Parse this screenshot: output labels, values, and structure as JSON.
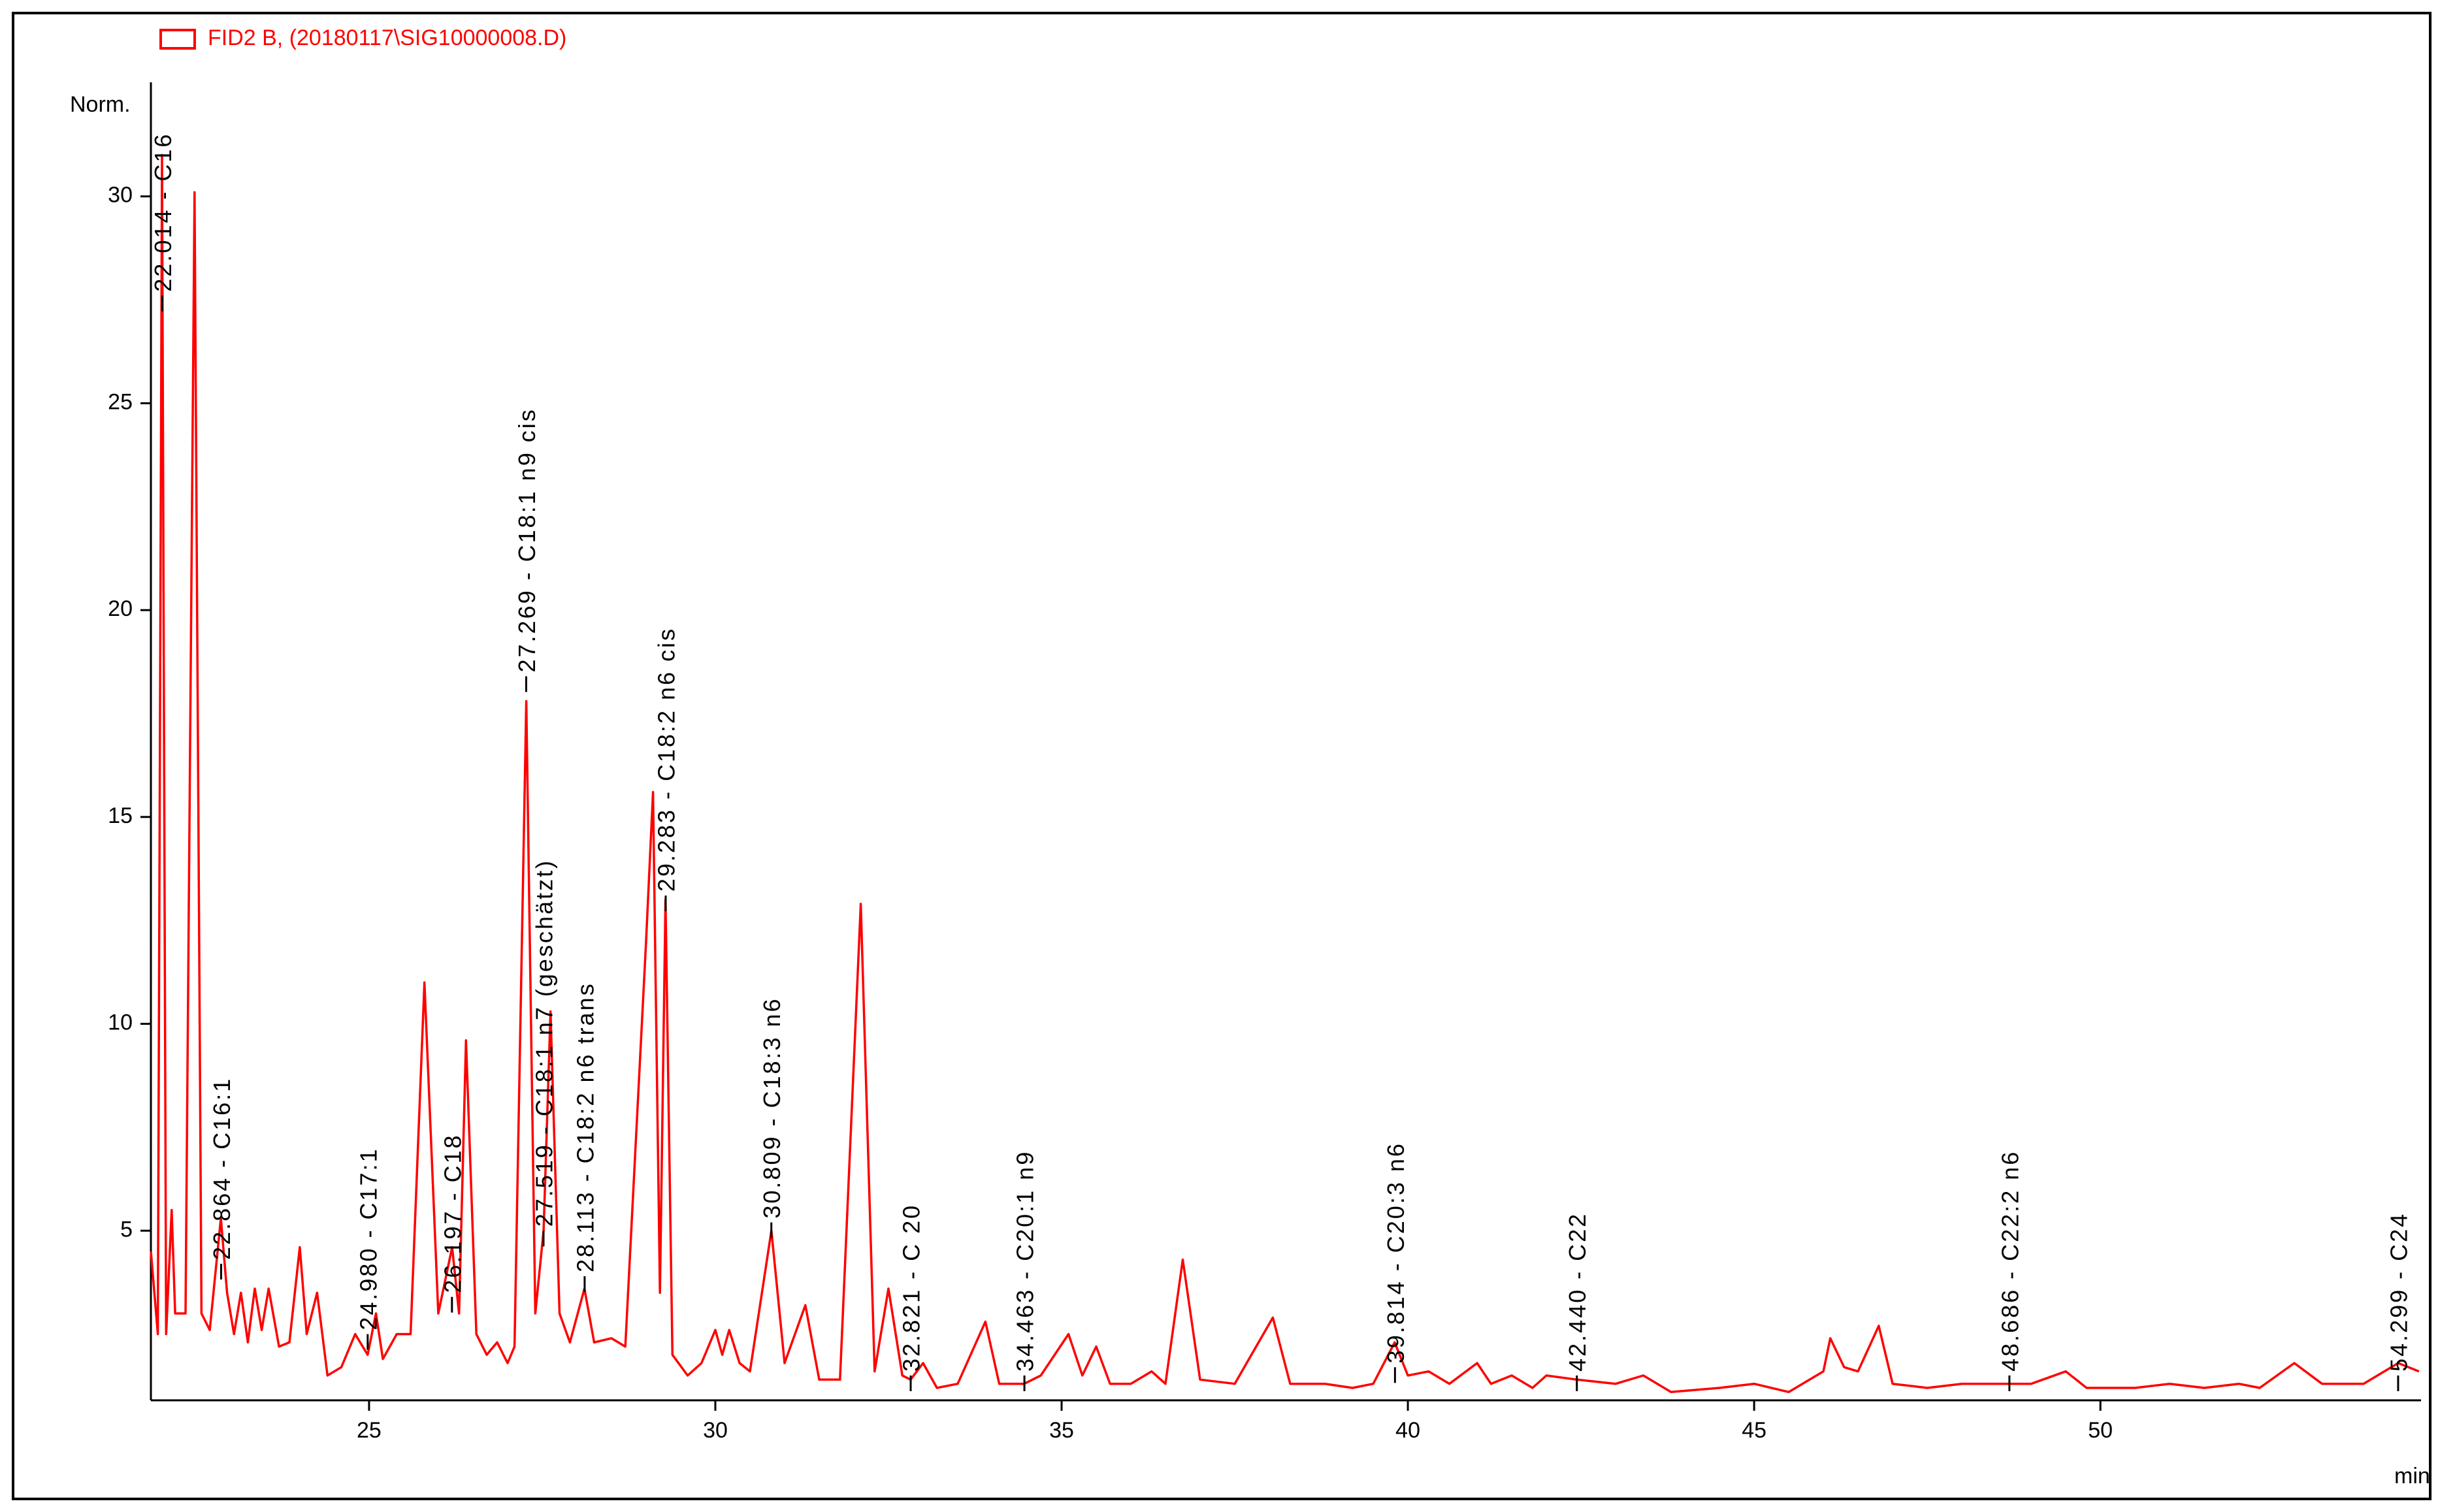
{
  "chart_data": {
    "type": "line",
    "y_label": "Norm.",
    "x_label": "min",
    "xlim": [
      21.85,
      54.63
    ],
    "ylim": [
      0.9,
      32.6
    ],
    "xticks": [
      25,
      30,
      35,
      40,
      45,
      50
    ],
    "yticks": [
      5,
      10,
      15,
      20,
      25,
      30
    ],
    "legend": "top-left",
    "series": [
      {
        "name": "FID2 B, (20180117\\SIG10000008.D)",
        "color": "#ff0000",
        "x": [
          21.85,
          21.95,
          22.01,
          22.07,
          22.15,
          22.2,
          22.35,
          22.48,
          22.58,
          22.7,
          22.86,
          22.95,
          23.05,
          23.15,
          23.25,
          23.35,
          23.45,
          23.55,
          23.7,
          23.85,
          24.0,
          24.1,
          24.25,
          24.4,
          24.6,
          24.8,
          24.98,
          25.1,
          25.2,
          25.4,
          25.6,
          25.8,
          26.0,
          26.2,
          26.3,
          26.4,
          26.55,
          26.7,
          26.85,
          27.0,
          27.1,
          27.27,
          27.4,
          27.52,
          27.62,
          27.75,
          27.9,
          28.11,
          28.25,
          28.5,
          28.7,
          29.0,
          29.1,
          29.2,
          29.28,
          29.38,
          29.6,
          29.8,
          30.0,
          30.1,
          30.2,
          30.35,
          30.5,
          30.81,
          31.0,
          31.3,
          31.5,
          31.8,
          32.1,
          32.3,
          32.5,
          32.7,
          32.82,
          33.0,
          33.2,
          33.5,
          33.9,
          34.1,
          34.46,
          34.7,
          35.1,
          35.3,
          35.5,
          35.7,
          36.0,
          36.3,
          36.5,
          36.75,
          37.0,
          37.5,
          38.05,
          38.3,
          38.8,
          39.2,
          39.5,
          39.81,
          40.0,
          40.3,
          40.6,
          41.0,
          41.2,
          41.5,
          41.8,
          42.0,
          42.44,
          43.0,
          43.4,
          43.8,
          44.5,
          45.0,
          45.5,
          46.0,
          46.1,
          46.3,
          46.5,
          46.8,
          47.0,
          47.5,
          48.0,
          48.69,
          49.0,
          49.5,
          49.8,
          50.5,
          51.0,
          51.5,
          52.0,
          52.3,
          52.8,
          53.2,
          53.8,
          54.3,
          54.6
        ],
        "values": [
          4.5,
          2.5,
          31,
          2.5,
          5.5,
          3,
          3,
          30.1,
          3,
          2.6,
          5.3,
          3.5,
          2.5,
          3.5,
          2.3,
          3.6,
          2.6,
          3.6,
          2.2,
          2.3,
          4.6,
          2.5,
          3.5,
          1.5,
          1.7,
          2.5,
          2.0,
          3.0,
          1.9,
          2.5,
          2.5,
          11.0,
          3.0,
          4.6,
          3.0,
          9.6,
          2.5,
          2.0,
          2.3,
          1.8,
          2.2,
          17.8,
          3,
          5.0,
          10.3,
          3,
          2.3,
          3.6,
          2.3,
          2.4,
          2.2,
          12,
          15.6,
          3.5,
          13,
          2,
          1.5,
          1.8,
          2.6,
          2,
          2.6,
          1.8,
          1.6,
          5,
          1.8,
          3.2,
          1.4,
          1.4,
          12.9,
          1.6,
          3.6,
          1.5,
          1.4,
          1.8,
          1.2,
          1.3,
          2.8,
          1.3,
          1.3,
          1.5,
          2.5,
          1.5,
          2.2,
          1.3,
          1.3,
          1.6,
          1.3,
          4.3,
          1.4,
          1.3,
          2.9,
          1.3,
          1.3,
          1.2,
          1.3,
          2.3,
          1.5,
          1.6,
          1.3,
          1.8,
          1.3,
          1.5,
          1.2,
          1.5,
          1.4,
          1.3,
          1.5,
          1.1,
          1.2,
          1.3,
          1.1,
          1.6,
          2.4,
          1.7,
          1.6,
          2.7,
          1.3,
          1.2,
          1.3,
          1.3,
          1.3,
          1.6,
          1.2,
          1.2,
          1.3,
          1.2,
          1.3,
          1.2,
          1.8,
          1.3,
          1.3,
          1.8,
          1.6
        ]
      }
    ],
    "annotations": [
      {
        "x": 22.014,
        "y": 27.6,
        "text": "22.014 - C16"
      },
      {
        "x": 22.864,
        "y": 4.2,
        "text": "22.864 - C16:1"
      },
      {
        "x": 24.98,
        "y": 2.5,
        "text": "24.980 - C17:1"
      },
      {
        "x": 26.197,
        "y": 3.4,
        "text": "26.197 - C18"
      },
      {
        "x": 27.269,
        "y": 18.4,
        "text": "27.269 - C18:1 n9 cis"
      },
      {
        "x": 27.519,
        "y": 5,
        "text": "27.519 - C18:1 n7 (geschätzt)"
      },
      {
        "x": 28.113,
        "y": 3.9,
        "text": "28.113 - C18:2 n6 trans"
      },
      {
        "x": 29.283,
        "y": 13.1,
        "text": "29.283 - C18:2 n6 cis"
      },
      {
        "x": 30.809,
        "y": 5.2,
        "text": "30.809 - C18:3 n6"
      },
      {
        "x": 32.821,
        "y": 1.5,
        "text": "32.821 - C 20"
      },
      {
        "x": 34.463,
        "y": 1.5,
        "text": "34.463 - C20:1 n9"
      },
      {
        "x": 39.814,
        "y": 1.7,
        "text": "39.814 - C20:3 n6"
      },
      {
        "x": 42.44,
        "y": 1.5,
        "text": "42.440 - C22"
      },
      {
        "x": 48.686,
        "y": 1.5,
        "text": "48.686 - C22:2 n6"
      },
      {
        "x": 54.299,
        "y": 1.5,
        "text": "54.299 - C24"
      }
    ]
  }
}
